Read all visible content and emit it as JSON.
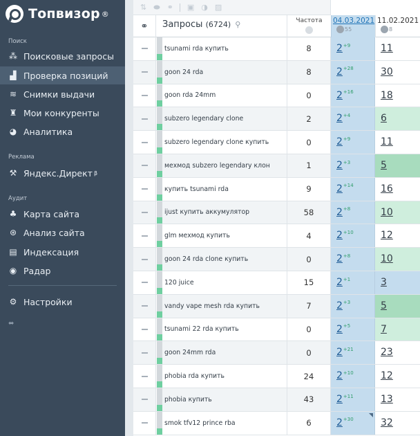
{
  "app": {
    "brand": "Топвизор",
    "brand_mark": "®"
  },
  "sidebar": {
    "sections": [
      {
        "title": "Поиск",
        "items": [
          {
            "label": "Поисковые запросы",
            "icon": "keywords-icon",
            "active": false
          },
          {
            "label": "Проверка позиций",
            "icon": "chart-icon",
            "active": true
          },
          {
            "label": "Снимки выдачи",
            "icon": "layers-icon",
            "active": false
          },
          {
            "label": "Мои конкуренты",
            "icon": "trophy-icon",
            "active": false
          },
          {
            "label": "Аналитика",
            "icon": "pie-icon",
            "active": false
          }
        ]
      },
      {
        "title": "Реклама",
        "items": [
          {
            "label": "Яндекс.Директ",
            "suffix": "β",
            "icon": "hammer-icon",
            "active": false
          }
        ]
      },
      {
        "title": "Аудит",
        "items": [
          {
            "label": "Карта сайта",
            "icon": "sitemap-icon",
            "active": false
          },
          {
            "label": "Анализ сайта",
            "icon": "lifebuoy-icon",
            "active": false
          },
          {
            "label": "Индексация",
            "icon": "index-icon",
            "active": false
          },
          {
            "label": "Радар",
            "icon": "eye-icon",
            "active": false
          }
        ]
      }
    ],
    "settings_label": "Настройки",
    "collapse_glyph": "⬌"
  },
  "table": {
    "header": {
      "queries_label": "Запросы",
      "queries_count": "(6724)",
      "frequency_label": "Частота",
      "date1": "04.03.2021",
      "date1_engine_count": "55",
      "date2": "11.02.2021",
      "date2_engine_count": "8"
    },
    "rows": [
      {
        "query": "tsunami rda купить",
        "freq": "8",
        "pos1": "2",
        "delta1": "+9",
        "pos2": "11",
        "hl": ""
      },
      {
        "query": "goon 24 rda",
        "freq": "8",
        "pos1": "2",
        "delta1": "+28",
        "pos2": "30",
        "hl": ""
      },
      {
        "query": "goon rda 24mm",
        "freq": "0",
        "pos1": "2",
        "delta1": "+16",
        "pos2": "18",
        "hl": ""
      },
      {
        "query": "subzero legendary clone",
        "freq": "2",
        "pos1": "2",
        "delta1": "+4",
        "pos2": "6",
        "hl": "lgreen"
      },
      {
        "query": "subzero legendary clone купить",
        "freq": "0",
        "pos1": "2",
        "delta1": "+9",
        "pos2": "11",
        "hl": ""
      },
      {
        "query": "мехмод subzero legendary клон",
        "freq": "1",
        "pos1": "2",
        "delta1": "+3",
        "pos2": "5",
        "hl": "green"
      },
      {
        "query": "купить tsunami rda",
        "freq": "9",
        "pos1": "2",
        "delta1": "+14",
        "pos2": "16",
        "hl": ""
      },
      {
        "query": "ijust купить аккумулятор",
        "freq": "58",
        "pos1": "2",
        "delta1": "+8",
        "pos2": "10",
        "hl": "lgreen"
      },
      {
        "query": "glm мехмод купить",
        "freq": "4",
        "pos1": "2",
        "delta1": "+10",
        "pos2": "12",
        "hl": ""
      },
      {
        "query": "goon 24 rda clone купить",
        "freq": "0",
        "pos1": "2",
        "delta1": "+8",
        "pos2": "10",
        "hl": "lgreen"
      },
      {
        "query": "120 juice",
        "freq": "15",
        "pos1": "2",
        "delta1": "+1",
        "pos2": "3",
        "hl": "blue"
      },
      {
        "query": "vandy vape mesh rda купить",
        "freq": "7",
        "pos1": "2",
        "delta1": "+3",
        "pos2": "5",
        "hl": "green"
      },
      {
        "query": "tsunami 22 rda купить",
        "freq": "0",
        "pos1": "2",
        "delta1": "+5",
        "pos2": "7",
        "hl": "lgreen"
      },
      {
        "query": "goon 24mm rda",
        "freq": "0",
        "pos1": "2",
        "delta1": "+21",
        "pos2": "23",
        "hl": ""
      },
      {
        "query": "phobia rda купить",
        "freq": "24",
        "pos1": "2",
        "delta1": "+10",
        "pos2": "12",
        "hl": ""
      },
      {
        "query": "phobia купить",
        "freq": "43",
        "pos1": "2",
        "delta1": "+11",
        "pos2": "13",
        "hl": ""
      },
      {
        "query": "smok tfv12 prince rba",
        "freq": "6",
        "pos1": "2",
        "delta1": "+30",
        "pos2": "32",
        "hl": "",
        "corner": true
      }
    ]
  }
}
